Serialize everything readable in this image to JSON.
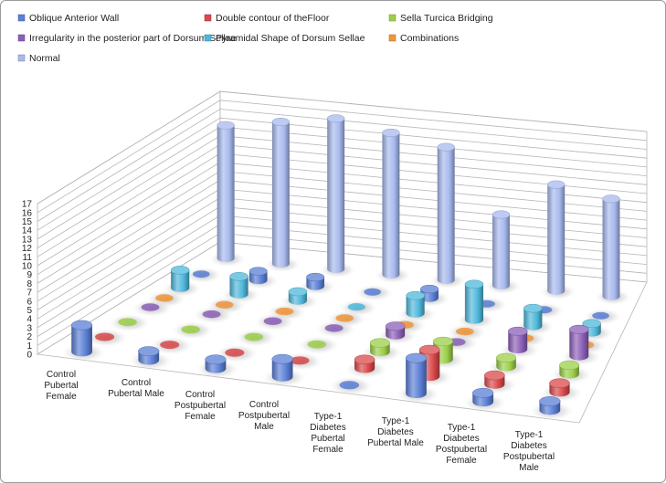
{
  "chart_data": {
    "type": "bar",
    "subtype": "3d-column",
    "categories": [
      "Control Pubertal Female",
      "Control Pubertal Male",
      "Control Postpubertal Female",
      "Control Postpubertal Male",
      "Type-1 Diabetes Pubertal Female",
      "Type-1 Diabetes Pubertal Male",
      "Type-1 Diabetes Postpubertal Female",
      "Type-1 Diabetes Postpubertal Male"
    ],
    "category_lines": [
      [
        "Control",
        "Pubertal",
        "Female"
      ],
      [
        "Control",
        "Pubertal Male"
      ],
      [
        "Control",
        "Postpubertal",
        "Female"
      ],
      [
        "Control",
        "Postpubertal",
        "Male"
      ],
      [
        "Type-1",
        "Diabetes",
        "Pubertal",
        "Female"
      ],
      [
        "Type-1",
        "Diabetes",
        "Pubertal Male"
      ],
      [
        "Type-1",
        "Diabetes",
        "Postpubertal",
        "Female"
      ],
      [
        "Type-1",
        "Diabetes",
        "Postpubertal",
        "Male"
      ]
    ],
    "series": [
      {
        "name": "Oblique Anterior Wall",
        "color": "#5b7fd6",
        "values": [
          3,
          1,
          1,
          2,
          0,
          4,
          1,
          1
        ]
      },
      {
        "name": "Double contour of theFloor",
        "color": "#d9484a",
        "values": [
          0,
          0,
          0,
          0,
          1,
          3,
          1,
          1
        ]
      },
      {
        "name": "Sella Turcica Bridging",
        "color": "#9bcf48",
        "values": [
          0,
          0,
          0,
          0,
          1,
          2,
          1,
          1
        ]
      },
      {
        "name": "Irregularity in the posterior part of Dorsum Sellae",
        "color": "#8b5fb8",
        "values": [
          0,
          0,
          0,
          0,
          1,
          0,
          2,
          3
        ]
      },
      {
        "name": "Pyramidal Shape of Dorsum Sellae",
        "color": "#4fb8db",
        "values": [
          0,
          0,
          0,
          0,
          0,
          2,
          1,
          1
        ]
      },
      {
        "name": "Combinations",
        "color": "#f0953a",
        "values": [
          0,
          0,
          0,
          0,
          0,
          0,
          0,
          0
        ]
      },
      {
        "name": "Normal",
        "color": "#a7b9ee",
        "values": [
          0,
          0,
          0,
          0,
          0,
          0,
          0,
          0
        ]
      }
    ],
    "back_row": {
      "oblique_wall": [
        0,
        1,
        1,
        0,
        1,
        0,
        0,
        0
      ],
      "pyramidal": [
        2,
        2,
        1,
        0,
        2,
        4,
        2,
        1
      ],
      "normal": [
        15,
        16,
        17,
        16,
        15,
        8,
        12,
        11
      ]
    },
    "y_ticks": [
      0,
      1,
      2,
      3,
      4,
      5,
      6,
      7,
      8,
      9,
      10,
      11,
      12,
      13,
      14,
      15,
      16,
      17
    ],
    "ylim": [
      0,
      17
    ],
    "grid": true,
    "legend_position": "top"
  }
}
